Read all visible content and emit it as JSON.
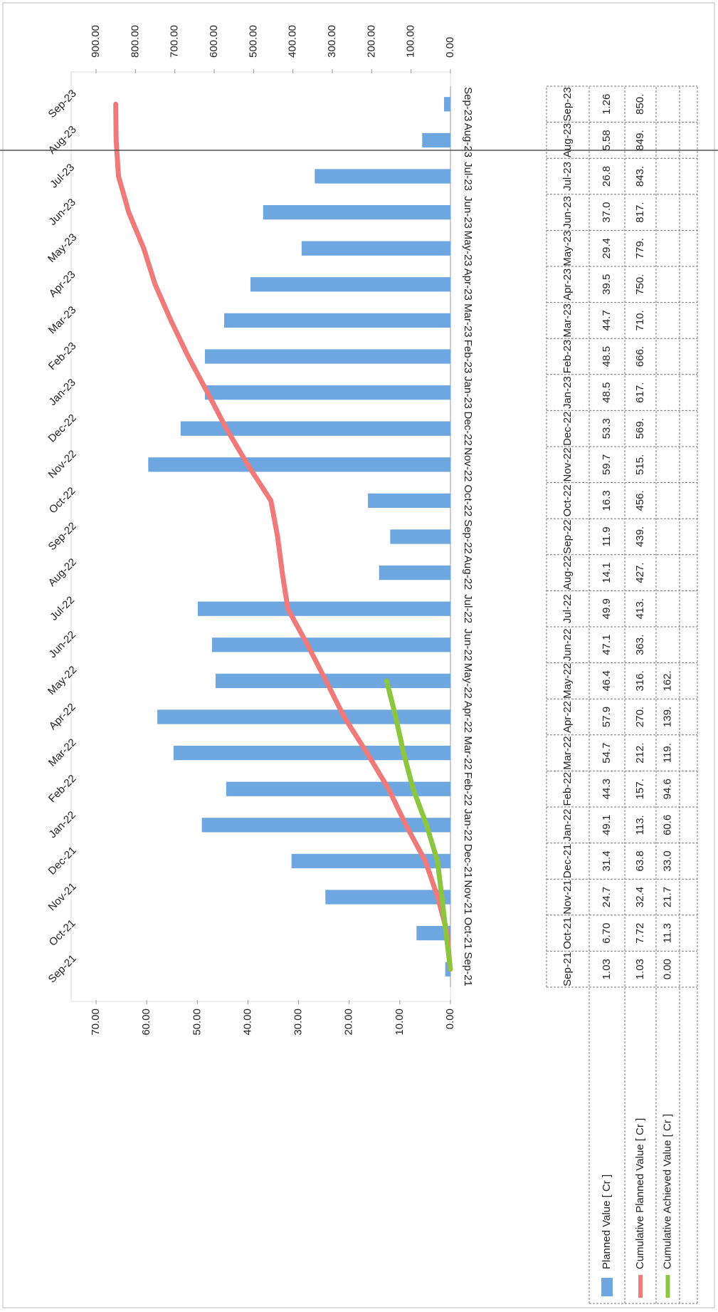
{
  "chart_data": {
    "type": "bar",
    "categories": [
      "Sep-21",
      "Oct-21",
      "Nov-21",
      "Dec-21",
      "Jan-22",
      "Feb-22",
      "Mar-22",
      "Apr-22",
      "May-22",
      "Jun-22",
      "Jul-22",
      "Aug-22",
      "Sep-22",
      "Oct-22",
      "Nov-22",
      "Dec-22",
      "Jan-23",
      "Feb-23",
      "Mar-23",
      "Apr-23",
      "May-23",
      "Jun-23",
      "Jul-23",
      "Aug-23",
      "Sep-23"
    ],
    "series": [
      {
        "name": "Planned Value [ Cr ]",
        "type": "bar",
        "color": "#6ea6e0",
        "values": [
          1.03,
          6.7,
          24.7,
          31.4,
          49.1,
          44.3,
          54.7,
          57.9,
          46.4,
          47.1,
          49.9,
          14.1,
          11.9,
          16.3,
          59.7,
          53.3,
          48.5,
          48.5,
          44.7,
          39.5,
          29.4,
          37.0,
          26.8,
          5.58,
          1.26
        ],
        "value_labels": [
          "1.03",
          "6.70",
          "24.7",
          "31.4",
          "49.1",
          "44.3",
          "54.7",
          "57.9",
          "46.4",
          "47.1",
          "49.9",
          "14.1",
          "11.9",
          "16.3",
          "59.7",
          "53.3",
          "48.5",
          "48.5",
          "44.7",
          "39.5",
          "29.4",
          "37.0",
          "26.8",
          "5.58",
          "1.26"
        ]
      },
      {
        "name": "Cumulative Planned Value [ Cr ]",
        "type": "line",
        "axis": "y2",
        "color": "#f07a7a",
        "values": [
          1.03,
          7.72,
          32.4,
          63.8,
          113,
          157,
          212,
          270,
          316,
          363,
          413,
          427,
          439,
          456,
          515,
          569,
          617,
          666,
          710,
          750,
          779,
          817,
          843,
          849,
          850
        ],
        "value_labels": [
          "1.03",
          "7.72",
          "32.4",
          "63.8",
          "113.",
          "157.",
          "212.",
          "270.",
          "316.",
          "363.",
          "413.",
          "427.",
          "439.",
          "456.",
          "515.",
          "569.",
          "617.",
          "666.",
          "710.",
          "750.",
          "779.",
          "817.",
          "843.",
          "849.",
          "850."
        ]
      },
      {
        "name": "Cumulative Achieved Value [ Cr ]",
        "type": "line",
        "axis": "y2",
        "color": "#8cc63f",
        "values": [
          0.0,
          11.3,
          21.7,
          33.0,
          60.6,
          94.6,
          119,
          139,
          162,
          null,
          null,
          null,
          null,
          null,
          null,
          null,
          null,
          null,
          null,
          null,
          null,
          null,
          null,
          null,
          null
        ],
        "value_labels": [
          "0.00",
          "11.3",
          "21.7",
          "33.0",
          "60.6",
          "94.6",
          "119.",
          "139.",
          "162.",
          null,
          null,
          null,
          null,
          null,
          null,
          null,
          null,
          null,
          null,
          null,
          null,
          null,
          null,
          null,
          null
        ]
      }
    ],
    "ylim": [
      0,
      70
    ],
    "yticks": [
      {
        "value": 0,
        "label": "0.00"
      },
      {
        "value": 10,
        "label": "10.00"
      },
      {
        "value": 20,
        "label": "20.00"
      },
      {
        "value": 30,
        "label": "30.00"
      },
      {
        "value": 40,
        "label": "40.00"
      },
      {
        "value": 50,
        "label": "50.00"
      },
      {
        "value": 60,
        "label": "60.00"
      },
      {
        "value": 70,
        "label": "70.00"
      }
    ],
    "y2lim": [
      0,
      900
    ],
    "y2ticks": [
      {
        "value": 0,
        "label": "0.00"
      },
      {
        "value": 100,
        "label": "100.00"
      },
      {
        "value": 200,
        "label": "200.00"
      },
      {
        "value": 300,
        "label": "300.00"
      },
      {
        "value": 400,
        "label": "400.00"
      },
      {
        "value": 500,
        "label": "500.00"
      },
      {
        "value": 600,
        "label": "600.00"
      },
      {
        "value": 700,
        "label": "700.00"
      },
      {
        "value": 800,
        "label": "800.00"
      },
      {
        "value": 900,
        "label": "900.00"
      }
    ],
    "grid": false
  }
}
